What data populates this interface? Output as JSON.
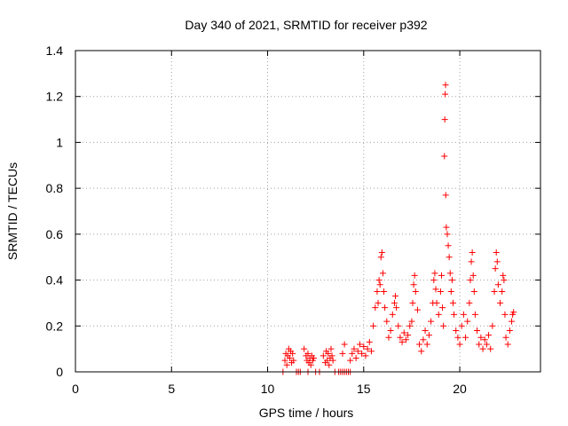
{
  "chart_data": {
    "type": "scatter",
    "title": "Day 340 of 2021, SRMTID for receiver p392",
    "xlabel": "GPS time / hours",
    "ylabel": "SRMTID / TECUs",
    "xlim": [
      0,
      24.2
    ],
    "ylim": [
      0,
      1.4
    ],
    "xticks": [
      0,
      5,
      10,
      15,
      20
    ],
    "yticks": [
      0,
      0.2,
      0.4,
      0.6,
      0.8,
      1,
      1.2,
      1.4
    ],
    "xtick_labels": [
      "0",
      "5",
      "10",
      "15",
      "20"
    ],
    "ytick_labels": [
      "0",
      "0.2",
      "0.4",
      "0.6",
      "0.8",
      "1",
      "1.2",
      "1.4"
    ],
    "grid": true,
    "marker": "+",
    "series": [
      {
        "name": "SRMTID",
        "color": "#ff0000",
        "points": [
          [
            10.8,
            0.0
          ],
          [
            10.9,
            0.05
          ],
          [
            10.95,
            0.08
          ],
          [
            11.0,
            0.03
          ],
          [
            11.05,
            0.07
          ],
          [
            11.1,
            0.1
          ],
          [
            11.15,
            0.06
          ],
          [
            11.2,
            0.09
          ],
          [
            11.25,
            0.04
          ],
          [
            11.3,
            0.08
          ],
          [
            11.35,
            0.05
          ],
          [
            11.5,
            0.0
          ],
          [
            11.6,
            0.0
          ],
          [
            11.7,
            0.0
          ],
          [
            11.9,
            0.1
          ],
          [
            12.0,
            0.07
          ],
          [
            12.05,
            0.05
          ],
          [
            12.1,
            0.08
          ],
          [
            12.15,
            0.04
          ],
          [
            12.2,
            0.06
          ],
          [
            12.25,
            0.03
          ],
          [
            12.3,
            0.07
          ],
          [
            12.35,
            0.05
          ],
          [
            12.4,
            0.06
          ],
          [
            12.1,
            0.0
          ],
          [
            12.5,
            0.0
          ],
          [
            12.7,
            0.0
          ],
          [
            12.9,
            0.07
          ],
          [
            13.0,
            0.04
          ],
          [
            13.05,
            0.09
          ],
          [
            13.1,
            0.05
          ],
          [
            13.15,
            0.08
          ],
          [
            13.2,
            0.03
          ],
          [
            13.25,
            0.06
          ],
          [
            13.3,
            0.1
          ],
          [
            13.35,
            0.07
          ],
          [
            13.4,
            0.05
          ],
          [
            13.5,
            0.0
          ],
          [
            13.7,
            0.0
          ],
          [
            13.8,
            0.0
          ],
          [
            13.9,
            0.0
          ],
          [
            14.0,
            0.0
          ],
          [
            14.1,
            0.0
          ],
          [
            14.2,
            0.0
          ],
          [
            14.3,
            0.0
          ],
          [
            13.9,
            0.08
          ],
          [
            14.0,
            0.12
          ],
          [
            14.3,
            0.05
          ],
          [
            14.4,
            0.08
          ],
          [
            14.5,
            0.1
          ],
          [
            14.6,
            0.06
          ],
          [
            14.7,
            0.09
          ],
          [
            14.8,
            0.12
          ],
          [
            14.9,
            0.08
          ],
          [
            15.0,
            0.11
          ],
          [
            15.1,
            0.07
          ],
          [
            15.2,
            0.1
          ],
          [
            15.3,
            0.13
          ],
          [
            15.4,
            0.09
          ],
          [
            15.5,
            0.2
          ],
          [
            15.6,
            0.28
          ],
          [
            15.7,
            0.35
          ],
          [
            15.75,
            0.3
          ],
          [
            15.8,
            0.4
          ],
          [
            15.85,
            0.38
          ],
          [
            15.9,
            0.5
          ],
          [
            15.95,
            0.52
          ],
          [
            16.0,
            0.43
          ],
          [
            16.05,
            0.35
          ],
          [
            16.1,
            0.28
          ],
          [
            16.2,
            0.22
          ],
          [
            16.3,
            0.15
          ],
          [
            16.4,
            0.18
          ],
          [
            16.5,
            0.25
          ],
          [
            16.6,
            0.3
          ],
          [
            16.65,
            0.33
          ],
          [
            16.7,
            0.28
          ],
          [
            16.8,
            0.2
          ],
          [
            16.9,
            0.15
          ],
          [
            17.0,
            0.13
          ],
          [
            17.1,
            0.17
          ],
          [
            17.2,
            0.14
          ],
          [
            17.3,
            0.16
          ],
          [
            17.4,
            0.2
          ],
          [
            17.5,
            0.22
          ],
          [
            17.55,
            0.3
          ],
          [
            17.6,
            0.38
          ],
          [
            17.65,
            0.42
          ],
          [
            17.7,
            0.35
          ],
          [
            17.8,
            0.27
          ],
          [
            17.9,
            0.12
          ],
          [
            18.0,
            0.09
          ],
          [
            18.1,
            0.14
          ],
          [
            18.2,
            0.18
          ],
          [
            18.3,
            0.12
          ],
          [
            18.4,
            0.16
          ],
          [
            18.5,
            0.22
          ],
          [
            18.6,
            0.3
          ],
          [
            18.65,
            0.4
          ],
          [
            18.7,
            0.43
          ],
          [
            18.75,
            0.36
          ],
          [
            18.8,
            0.3
          ],
          [
            18.9,
            0.25
          ],
          [
            19.0,
            0.35
          ],
          [
            19.05,
            0.42
          ],
          [
            19.1,
            0.28
          ],
          [
            19.15,
            0.2
          ],
          [
            19.2,
            0.94
          ],
          [
            19.22,
            1.1
          ],
          [
            19.24,
            1.21
          ],
          [
            19.26,
            1.25
          ],
          [
            19.27,
            0.77
          ],
          [
            19.3,
            0.63
          ],
          [
            19.35,
            0.6
          ],
          [
            19.4,
            0.55
          ],
          [
            19.45,
            0.5
          ],
          [
            19.5,
            0.43
          ],
          [
            19.55,
            0.35
          ],
          [
            19.6,
            0.4
          ],
          [
            19.65,
            0.3
          ],
          [
            19.7,
            0.25
          ],
          [
            19.8,
            0.18
          ],
          [
            19.9,
            0.15
          ],
          [
            20.0,
            0.12
          ],
          [
            20.1,
            0.2
          ],
          [
            20.2,
            0.25
          ],
          [
            20.3,
            0.15
          ],
          [
            20.4,
            0.22
          ],
          [
            20.5,
            0.3
          ],
          [
            20.55,
            0.4
          ],
          [
            20.6,
            0.48
          ],
          [
            20.65,
            0.52
          ],
          [
            20.7,
            0.42
          ],
          [
            20.75,
            0.35
          ],
          [
            20.8,
            0.25
          ],
          [
            20.9,
            0.18
          ],
          [
            21.0,
            0.12
          ],
          [
            21.1,
            0.15
          ],
          [
            21.2,
            0.1
          ],
          [
            21.3,
            0.14
          ],
          [
            21.4,
            0.12
          ],
          [
            21.5,
            0.16
          ],
          [
            21.6,
            0.1
          ],
          [
            21.7,
            0.2
          ],
          [
            21.8,
            0.35
          ],
          [
            21.85,
            0.45
          ],
          [
            21.9,
            0.52
          ],
          [
            21.95,
            0.48
          ],
          [
            22.0,
            0.38
          ],
          [
            22.1,
            0.3
          ],
          [
            22.2,
            0.35
          ],
          [
            22.25,
            0.42
          ],
          [
            22.3,
            0.4
          ],
          [
            22.35,
            0.25
          ],
          [
            22.4,
            0.15
          ],
          [
            22.5,
            0.12
          ],
          [
            22.6,
            0.18
          ],
          [
            22.7,
            0.22
          ],
          [
            22.75,
            0.25
          ],
          [
            22.8,
            0.26
          ]
        ]
      }
    ]
  }
}
